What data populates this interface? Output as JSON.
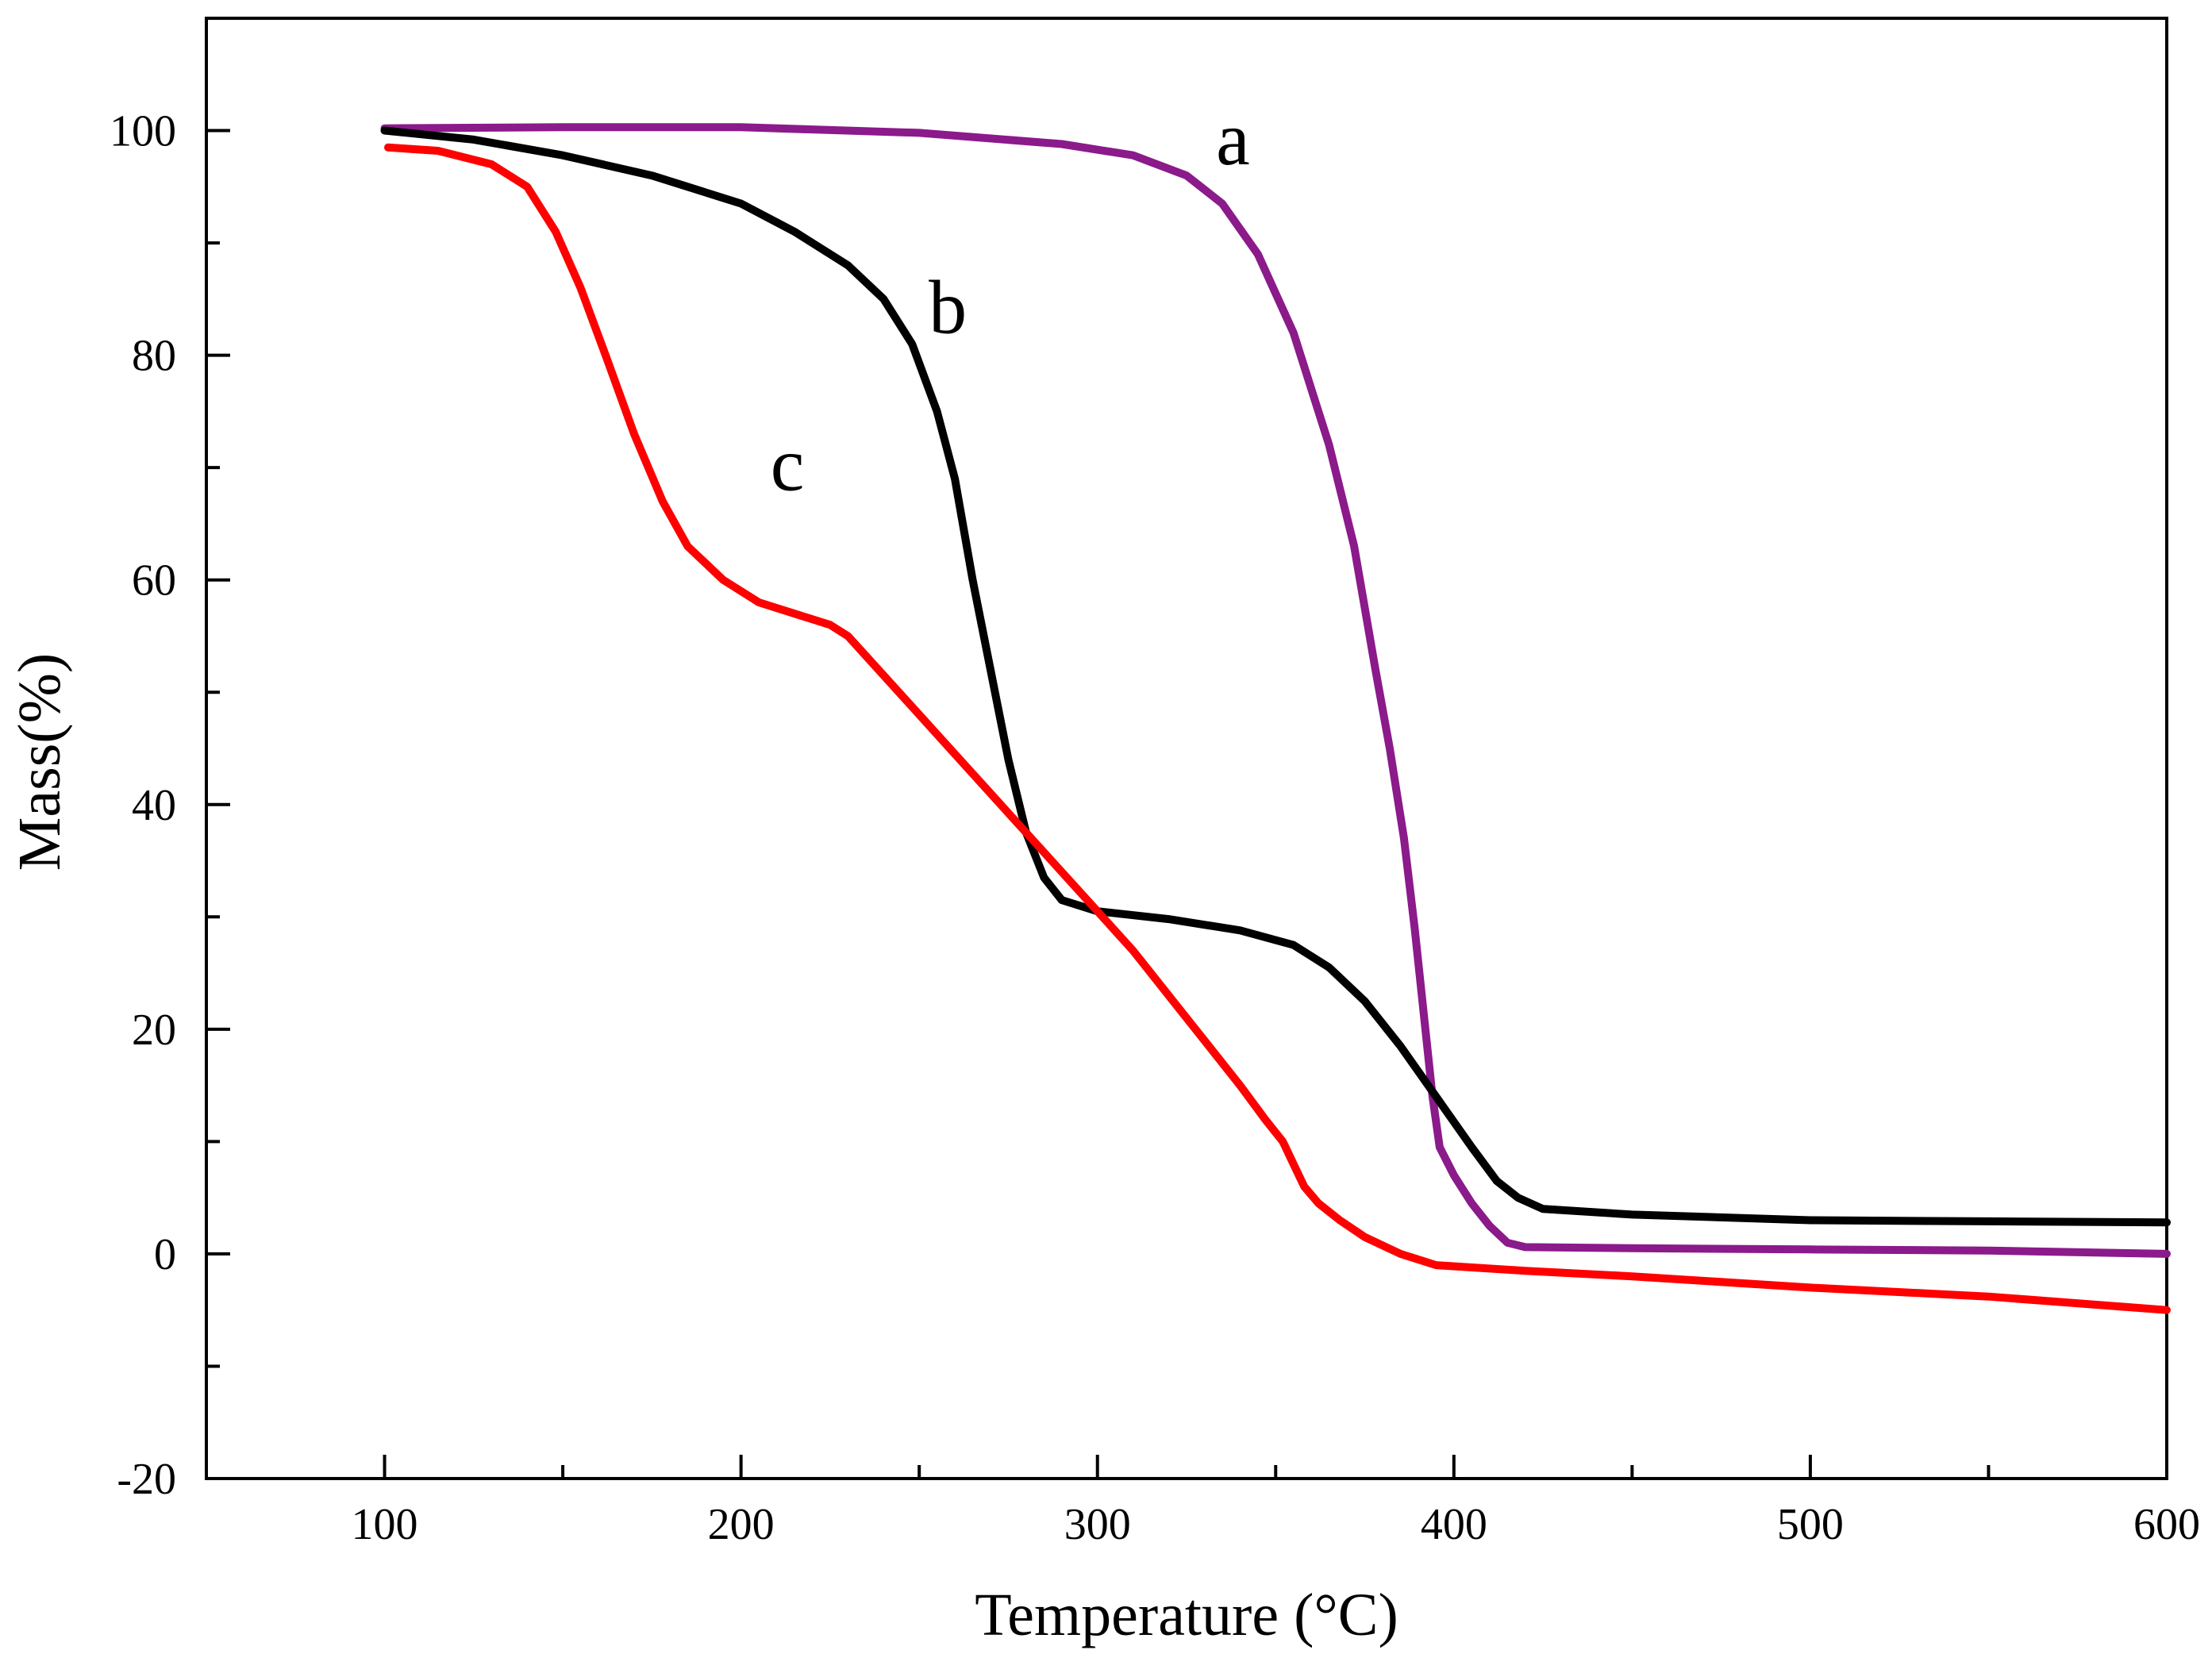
{
  "chart_data": {
    "type": "line",
    "title": "",
    "xlabel": "Temperature (°C)",
    "ylabel": "Mass(%)",
    "xlim": [
      50,
      600
    ],
    "ylim": [
      -20,
      110
    ],
    "x_ticks": [
      100,
      200,
      300,
      400,
      500,
      600
    ],
    "x_tick_labels": [
      "100",
      "200",
      "300",
      "400",
      "500",
      "600"
    ],
    "x_minor_ticks": [
      150,
      250,
      350,
      450,
      550
    ],
    "y_ticks": [
      -20,
      0,
      20,
      40,
      60,
      80,
      100
    ],
    "y_tick_labels": [
      "-20",
      "0",
      "20",
      "40",
      "60",
      "80",
      "100"
    ],
    "y_minor_ticks": [
      -10,
      10,
      30,
      50,
      70,
      90
    ],
    "grid": false,
    "series": [
      {
        "name": "a",
        "color": "#8B1A8B",
        "label_at": [
          338,
          97
        ],
        "points": [
          [
            100,
            100.2
          ],
          [
            150,
            100.3
          ],
          [
            200,
            100.3
          ],
          [
            250,
            99.8
          ],
          [
            290,
            98.8
          ],
          [
            310,
            97.8
          ],
          [
            325,
            96
          ],
          [
            335,
            93.5
          ],
          [
            345,
            89
          ],
          [
            355,
            82
          ],
          [
            365,
            72
          ],
          [
            372,
            63
          ],
          [
            378,
            52
          ],
          [
            382,
            45
          ],
          [
            386,
            37
          ],
          [
            389,
            29
          ],
          [
            392,
            20
          ],
          [
            394,
            14
          ],
          [
            396,
            9.5
          ],
          [
            400,
            7
          ],
          [
            405,
            4.5
          ],
          [
            410,
            2.5
          ],
          [
            415,
            1
          ],
          [
            420,
            0.6
          ],
          [
            450,
            0.5
          ],
          [
            500,
            0.4
          ],
          [
            550,
            0.3
          ],
          [
            600,
            0
          ]
        ]
      },
      {
        "name": "b",
        "color": "#000000",
        "label_at": [
          258,
          82
        ],
        "points": [
          [
            100,
            100
          ],
          [
            125,
            99.2
          ],
          [
            150,
            97.8
          ],
          [
            175,
            96
          ],
          [
            200,
            93.5
          ],
          [
            215,
            91
          ],
          [
            230,
            88
          ],
          [
            240,
            85
          ],
          [
            248,
            81
          ],
          [
            255,
            75
          ],
          [
            260,
            69
          ],
          [
            265,
            60
          ],
          [
            270,
            52
          ],
          [
            275,
            44
          ],
          [
            280,
            37.5
          ],
          [
            285,
            33.5
          ],
          [
            290,
            31.5
          ],
          [
            300,
            30.5
          ],
          [
            320,
            29.8
          ],
          [
            340,
            28.8
          ],
          [
            355,
            27.5
          ],
          [
            365,
            25.5
          ],
          [
            375,
            22.5
          ],
          [
            385,
            18.5
          ],
          [
            395,
            14
          ],
          [
            405,
            9.5
          ],
          [
            412,
            6.5
          ],
          [
            418,
            5
          ],
          [
            425,
            4
          ],
          [
            450,
            3.5
          ],
          [
            500,
            3
          ],
          [
            550,
            2.9
          ],
          [
            600,
            2.8
          ]
        ]
      },
      {
        "name": "c",
        "color": "#FF0000",
        "label_at": [
          213,
          68
        ],
        "points": [
          [
            101,
            98.5
          ],
          [
            115,
            98.2
          ],
          [
            130,
            97
          ],
          [
            140,
            95
          ],
          [
            148,
            91
          ],
          [
            155,
            86
          ],
          [
            162,
            80
          ],
          [
            170,
            73
          ],
          [
            178,
            67
          ],
          [
            185,
            63
          ],
          [
            195,
            60
          ],
          [
            205,
            58
          ],
          [
            215,
            57
          ],
          [
            225,
            56
          ],
          [
            230,
            55
          ],
          [
            240,
            51.5
          ],
          [
            250,
            48
          ],
          [
            260,
            44.5
          ],
          [
            270,
            41
          ],
          [
            280,
            37.5
          ],
          [
            290,
            34
          ],
          [
            300,
            30.5
          ],
          [
            310,
            27
          ],
          [
            320,
            23
          ],
          [
            330,
            19
          ],
          [
            340,
            15
          ],
          [
            347,
            12
          ],
          [
            352,
            10
          ],
          [
            355,
            8
          ],
          [
            358,
            6
          ],
          [
            362,
            4.5
          ],
          [
            368,
            3
          ],
          [
            375,
            1.5
          ],
          [
            385,
            0
          ],
          [
            395,
            -1
          ],
          [
            420,
            -1.5
          ],
          [
            450,
            -2
          ],
          [
            500,
            -3
          ],
          [
            550,
            -3.8
          ],
          [
            600,
            -5
          ]
        ]
      }
    ]
  }
}
